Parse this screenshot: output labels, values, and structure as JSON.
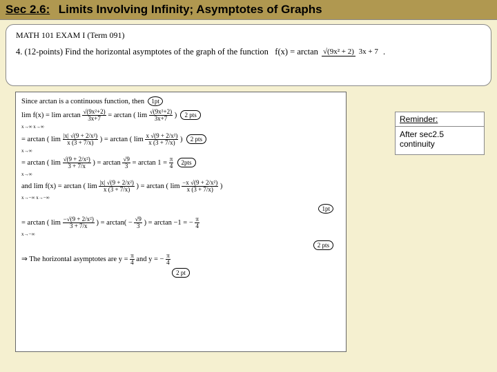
{
  "header": {
    "section": "Sec 2.6:",
    "title": "Limits Involving Infinity; Asymptotes of Graphs"
  },
  "problem": {
    "exam_title": "MATH 101 EXAM I (Term 091)",
    "number": "4.",
    "points": "(12-points)",
    "text": "Find the horizontal asymptotes of the graph of the function",
    "func_lhs": "f(x) = arctan",
    "func_num": "√(9x² + 2)",
    "func_den": "3x + 7",
    "period": "."
  },
  "solution": {
    "l1a": "Since arctan is a continuous function, then",
    "l1pt": "1pt",
    "l2a": "lim  f(x) = lim  arctan",
    "l2sub": "x→∞            x→∞",
    "l2frac_n": "√(9x²+2)",
    "l2frac_d": "3x+7",
    "l2b": " = arctan ( lim",
    "l2bsub": "x→∞",
    "l2bfrac_n": "√(9x²+2)",
    "l2bfrac_d": "3x+7",
    "l2c": ")",
    "l2pt": "2 pts",
    "l3a": "= arctan ( lim",
    "l3sub": "x→∞",
    "l3frac_n": "|x| √(9 + 2/x²)",
    "l3frac_d": "x (3 + 7/x)",
    "l3b": ") = arctan ( lim",
    "l3bsub": "x→∞",
    "l3bfrac_n": "x √(9 + 2/x²)",
    "l3bfrac_d": "x (3 + 7/x)",
    "l3c": ")",
    "l3pt": "2 pts",
    "l4a": "= arctan ( lim",
    "l4sub": "x→∞",
    "l4frac_n": "√(9 + 2/x²)",
    "l4frac_d": "3 + 7/x",
    "l4b": ") = arctan",
    "l4bfrac_n": "√9",
    "l4bfrac_d": "3",
    "l4c": " = arctan 1 = ",
    "l4res_n": "π",
    "l4res_d": "4",
    "l4pt": "2pts",
    "l5a": "and  lim  f(x) = arctan ( lim",
    "l5sub": "x→−∞                    x→−∞",
    "l5frac_n": "|x| √(9 + 2/x²)",
    "l5frac_d": "x (3 + 7/x)",
    "l5b": ") = arctan ( lim",
    "l5bsub": "x→−∞",
    "l5bfrac_n": "−x √(9 + 2/x²)",
    "l5bfrac_d": "x (3 + 7/x)",
    "l5c": ")",
    "l5pt": "1pt",
    "l6a": "= arctan ( lim",
    "l6sub": "x→−∞",
    "l6frac_n": "−√(9 + 2/x²)",
    "l6frac_d": "3 + 7/x",
    "l6b": ") = arctan( −",
    "l6bfrac_n": "√9",
    "l6bfrac_d": "3",
    "l6c": ") = arctan −1 = −",
    "l6res_n": "π",
    "l6res_d": "4",
    "l6pt": "2 pts",
    "l7a": "⇒  The horizontal asymptotes are  y = ",
    "l7f1_n": "π",
    "l7f1_d": "4",
    "l7b": "  and  y = −",
    "l7f2_n": "π",
    "l7f2_d": "4",
    "l7pt": "2 pt"
  },
  "reminder": {
    "head": "Reminder:",
    "body": "After sec2.5 continuity"
  }
}
